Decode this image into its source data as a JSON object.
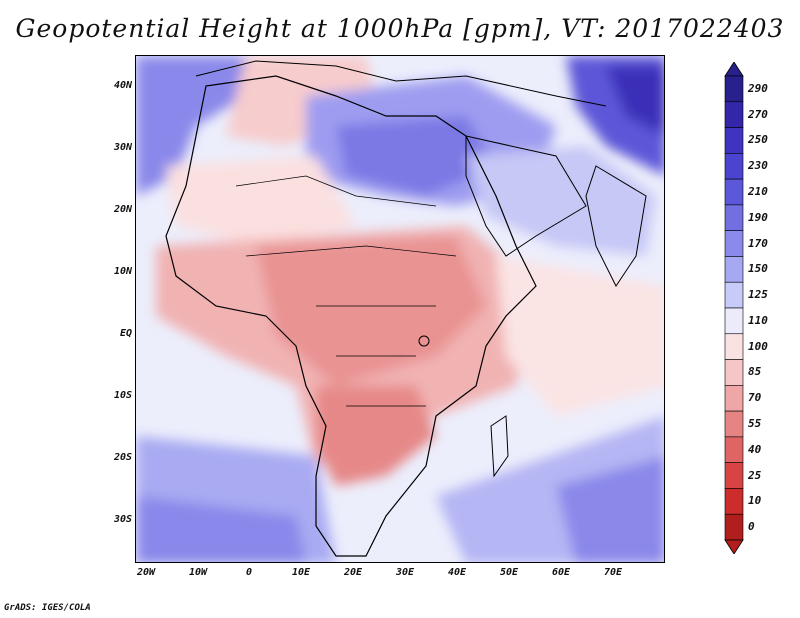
{
  "title": "Geopotential Height at 1000hPa [gpm], VT: 2017022403",
  "footer": "GrADS: IGES/COLA",
  "lat_labels": [
    "40N",
    "30N",
    "20N",
    "10N",
    "EQ",
    "10S",
    "20S",
    "30S"
  ],
  "lon_labels": [
    "20W",
    "10W",
    "0",
    "10E",
    "20E",
    "30E",
    "40E",
    "50E",
    "60E",
    "70E"
  ],
  "colorbar": {
    "levels": [
      "290",
      "270",
      "250",
      "230",
      "210",
      "190",
      "170",
      "150",
      "125",
      "110",
      "100",
      "85",
      "70",
      "55",
      "40",
      "25",
      "10",
      "0"
    ],
    "colors": [
      "#28208c",
      "#3326a8",
      "#3f34c2",
      "#4b44d0",
      "#5c58da",
      "#7270e0",
      "#8a8aea",
      "#a6a8f2",
      "#c8caf8",
      "#ebebfc",
      "#fbe2e2",
      "#f6c6c6",
      "#eea6a6",
      "#e68484",
      "#df6464",
      "#d84444",
      "#cc2c2c",
      "#b01e1e"
    ]
  }
}
